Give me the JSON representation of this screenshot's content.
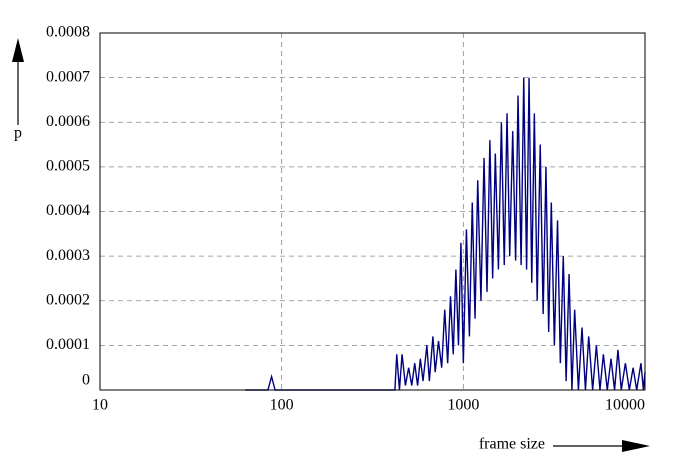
{
  "chart_data": {
    "type": "line",
    "xlabel": "frame size",
    "ylabel": "p",
    "xscale": "log",
    "grid": true,
    "color": "#000080",
    "xlim": [
      10,
      10000
    ],
    "ylim": [
      0,
      0.0008
    ],
    "xticks": [
      10,
      100,
      1000,
      10000
    ],
    "yticks": [
      0,
      0.0001,
      0.0002,
      0.0003,
      0.0004,
      0.0005,
      0.0006,
      0.0007,
      0.0008
    ],
    "x": [
      63,
      84,
      88,
      92,
      420,
      430,
      445,
      460,
      480,
      500,
      520,
      540,
      560,
      580,
      600,
      630,
      650,
      680,
      700,
      730,
      760,
      790,
      820,
      850,
      880,
      910,
      940,
      970,
      1000,
      1040,
      1080,
      1120,
      1160,
      1200,
      1250,
      1300,
      1350,
      1400,
      1450,
      1500,
      1560,
      1620,
      1680,
      1740,
      1800,
      1870,
      1940,
      2000,
      2080,
      2150,
      2230,
      2300,
      2380,
      2460,
      2550,
      2650,
      2750,
      2850,
      2950,
      3050,
      3170,
      3300,
      3420,
      3550,
      3680,
      3820,
      3960,
      4100,
      4300,
      4500,
      4700,
      4900,
      5150,
      5400,
      5650,
      5900,
      6200,
      6500,
      6800,
      7100,
      7400,
      7800,
      8200,
      8600,
      9000,
      9500,
      9800,
      10000
    ],
    "values": [
      0,
      0,
      3e-05,
      0,
      0,
      8e-05,
      0,
      8e-05,
      1e-05,
      5e-05,
      1e-05,
      6e-05,
      1e-05,
      7e-05,
      2e-05,
      0.0001,
      2e-05,
      0.00012,
      4e-05,
      0.00011,
      5e-05,
      0.00018,
      6e-05,
      0.00021,
      8e-05,
      0.00027,
      0.0001,
      0.00033,
      6e-05,
      0.00036,
      0.00012,
      0.00042,
      0.00016,
      0.00047,
      0.0002,
      0.00052,
      0.00022,
      0.00056,
      0.00025,
      0.00053,
      0.00027,
      0.0006,
      0.00028,
      0.00062,
      0.0003,
      0.00058,
      0.00029,
      0.00066,
      0.00028,
      0.0007,
      0.00027,
      0.0007,
      0.00024,
      0.00062,
      0.0002,
      0.00055,
      0.00017,
      0.0005,
      0.00013,
      0.00042,
      0.0001,
      0.00038,
      6e-05,
      0.0003,
      2e-05,
      0.00026,
      0,
      0.00018,
      0,
      0.00014,
      0,
      0.00012,
      0,
      0.0001,
      0,
      8e-05,
      0,
      7e-05,
      0,
      9e-05,
      0,
      6e-05,
      0,
      5e-05,
      0,
      6e-05,
      0,
      4e-05
    ]
  }
}
